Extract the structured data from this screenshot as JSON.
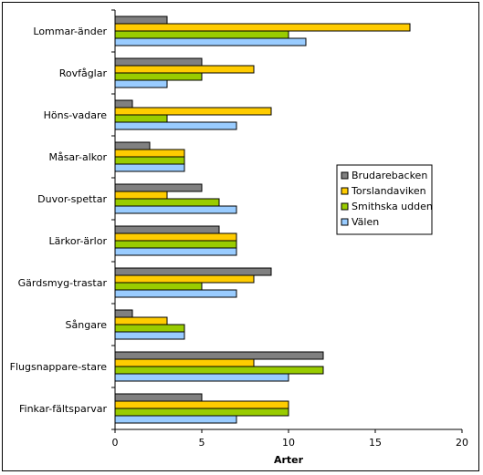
{
  "chart_data": {
    "type": "bar",
    "orientation": "horizontal",
    "xlabel": "Arter",
    "xlim": [
      0,
      20
    ],
    "xticks": [
      0,
      5,
      10,
      15,
      20
    ],
    "grid": false,
    "legend_position": "right",
    "categories": [
      "Lommar-änder",
      "Rovfåglar",
      "Höns-vadare",
      "Måsar-alkor",
      "Duvor-spettar",
      "Lärkor-ärlor",
      "Gärdsmyg-trastar",
      "Sångare",
      "Flugsnappare-stare",
      "Finkar-fältsparvar"
    ],
    "series": [
      {
        "name": "Brudarebacken",
        "color": "#808080",
        "values": [
          3,
          5,
          1,
          2,
          5,
          6,
          9,
          1,
          12,
          5
        ]
      },
      {
        "name": "Torslandaviken",
        "color": "#FFCC00",
        "values": [
          17,
          8,
          9,
          4,
          3,
          7,
          8,
          3,
          8,
          10
        ]
      },
      {
        "name": "Smithska udden",
        "color": "#99CC00",
        "values": [
          10,
          5,
          3,
          4,
          6,
          7,
          5,
          4,
          12,
          10
        ]
      },
      {
        "name": "Välen",
        "color": "#99CCFF",
        "values": [
          11,
          3,
          7,
          4,
          7,
          7,
          7,
          4,
          10,
          7
        ]
      }
    ]
  }
}
